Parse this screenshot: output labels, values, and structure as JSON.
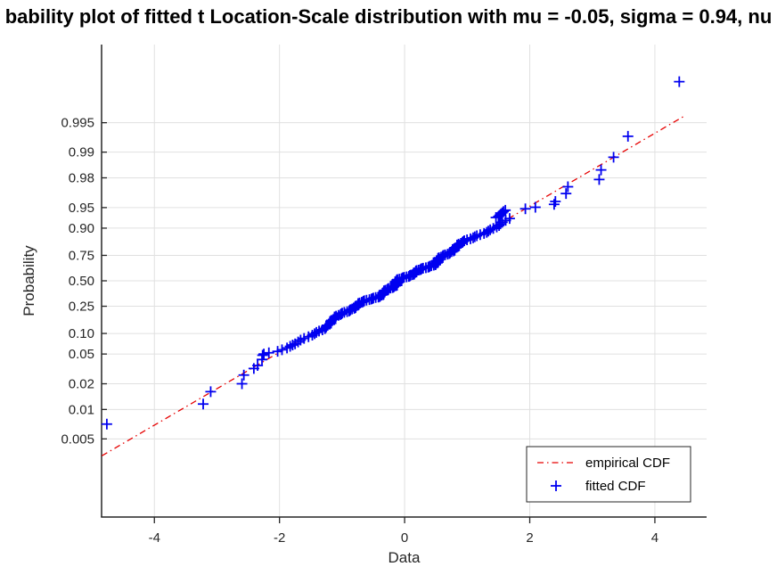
{
  "title": {
    "visible_text": "bability plot of fitted t Location-Scale distribution with mu = -0.05, sigma = 0.94, nu"
  },
  "fitted_params_shown": {
    "mu": "-0.05",
    "sigma": "0.94",
    "nu_label": "nu"
  },
  "colors": {
    "marker_blue": "#0000f0",
    "line_red": "#e60000",
    "grid": "#e0e0e0",
    "axis": "#262626",
    "legend_border": "#262626",
    "background": "#ffffff"
  },
  "chart_data": {
    "type": "scatter",
    "xlabel": "Data",
    "ylabel": "Probability",
    "x_ticks": [
      -4,
      -2,
      0,
      2,
      4
    ],
    "x_tick_labels": [
      "-4",
      "-2",
      "0",
      "2",
      "4"
    ],
    "xlim": [
      -4.844,
      4.827
    ],
    "y_scale": "t_quantile_nu4",
    "p_axis_range": [
      0.00117,
      0.99883
    ],
    "y_ticks": [
      0.005,
      0.01,
      0.02,
      0.05,
      0.1,
      0.25,
      0.5,
      0.75,
      0.9,
      0.95,
      0.98,
      0.99,
      0.995
    ],
    "y_tick_labels": [
      "0.005",
      "0.01",
      "0.02",
      "0.05",
      "0.10",
      "0.25",
      "0.50",
      "0.75",
      "0.90",
      "0.95",
      "0.98",
      "0.99",
      "0.995"
    ],
    "grid": true,
    "legend": {
      "position": "south-east",
      "items": [
        "empirical CDF",
        "fitted CDF"
      ]
    },
    "series": [
      {
        "name": "empirical CDF",
        "type": "line",
        "style": "dash-dot",
        "endpoints": {
          "x": [
            -4.84,
            4.45
          ],
          "p": [
            0.0035,
            0.9956
          ]
        }
      },
      {
        "name": "fitted CDF",
        "type": "markers",
        "marker": "plus",
        "tail_points_low": [
          [
            -4.76,
            0.007
          ],
          [
            -3.22,
            0.0115
          ],
          [
            -3.1,
            0.016
          ],
          [
            -2.6,
            0.02
          ],
          [
            -2.57,
            0.0258
          ],
          [
            -2.41,
            0.0315
          ],
          [
            -2.35,
            0.0346
          ],
          [
            -2.28,
            0.0418
          ],
          [
            -2.27,
            0.048
          ],
          [
            -2.25,
            0.05
          ],
          [
            -2.17,
            0.052
          ],
          [
            -2.03,
            0.0545
          ],
          [
            -1.96,
            0.0575
          ],
          [
            -1.88,
            0.061
          ],
          [
            -1.83,
            0.0645
          ],
          [
            -1.79,
            0.0675
          ]
        ],
        "tail_points_high": [
          [
            1.46,
            0.9305
          ],
          [
            1.5,
            0.933
          ],
          [
            1.52,
            0.9355
          ],
          [
            1.54,
            0.938
          ],
          [
            1.56,
            0.9405
          ],
          [
            1.58,
            0.943
          ],
          [
            1.61,
            0.9455
          ],
          [
            1.93,
            0.948
          ],
          [
            2.09,
            0.9505
          ],
          [
            2.39,
            0.955
          ],
          [
            2.41,
            0.959
          ],
          [
            2.58,
            0.968
          ],
          [
            2.61,
            0.974
          ],
          [
            3.11,
            0.979
          ],
          [
            3.14,
            0.984
          ],
          [
            3.34,
            0.9886
          ],
          [
            3.57,
            0.9932
          ],
          [
            4.39,
            0.9978
          ]
        ],
        "dense_band": {
          "p_from": 0.07,
          "p_to": 0.928,
          "count": 179,
          "mu": -0.05,
          "sigma": 0.94,
          "nu": 4,
          "wiggle": [
            {
              "amp": 0.05,
              "freq": 21,
              "phase": 0
            },
            {
              "amp": 0.04,
              "freq": 57,
              "phase": 1
            },
            {
              "amp": 0.015,
              "freq": 263,
              "phase": 2
            }
          ]
        }
      }
    ]
  }
}
